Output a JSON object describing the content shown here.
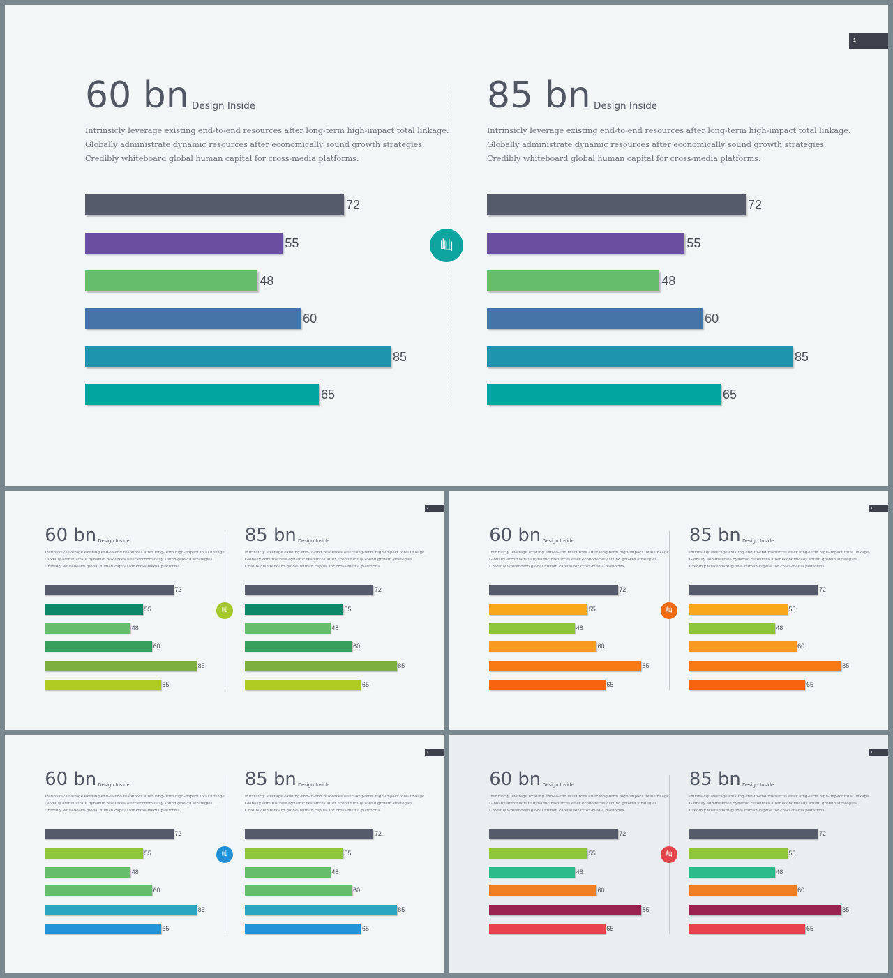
{
  "slides": [
    {
      "page": "1",
      "bg": "#f3f6f6",
      "accent": "#0ea5a1",
      "icon": "mountain-icon",
      "badge": "屾",
      "colors": [
        "#555b6b",
        "#6a4ea0",
        "#64be6c",
        "#4474a8",
        "#1e94ae",
        "#02a59f"
      ]
    },
    {
      "page": "2",
      "bg": "#f3f6f6",
      "accent": "#a5c82a",
      "icon": "mountain-icon",
      "badge": "屾",
      "colors": [
        "#555b6b",
        "#0d8868",
        "#64be6c",
        "#36a05c",
        "#7cae40",
        "#b0cc22"
      ]
    },
    {
      "page": "3",
      "bg": "#f3f6f6",
      "accent": "#f26a12",
      "icon": "mountain-icon",
      "badge": "屾",
      "colors": [
        "#555b6b",
        "#f8a81a",
        "#8ec63b",
        "#f89922",
        "#f87a14",
        "#f8640e"
      ]
    },
    {
      "page": "4",
      "bg": "#f3f6f6",
      "accent": "#1e90d8",
      "icon": "mountain-icon",
      "badge": "屾",
      "colors": [
        "#555b6b",
        "#8ec63b",
        "#64be6c",
        "#64be6c",
        "#2aa6c2",
        "#2294d8"
      ]
    },
    {
      "page": "5",
      "bg": "#ebeef0",
      "accent": "#e8424c",
      "icon": "mountain-icon",
      "badge": "屾",
      "colors": [
        "#555b6b",
        "#8ec63b",
        "#2cbc8c",
        "#f07f24",
        "#9a2250",
        "#e8424c"
      ]
    }
  ],
  "columns": [
    {
      "big": "60 bn",
      "sub": "Design Inside",
      "lines": [
        "Intrinsicly leverage existing end-to-end resources after long-term high-impact total linkage.",
        "Globally administrate dynamic resources after economically sound growth strategies.",
        "Credibly whiteboard global human capital for cross-media platforms."
      ]
    },
    {
      "big": "85 bn",
      "sub": "Design Inside",
      "lines": [
        "Intrinsicly leverage existing end-to-end resources after long-term high-impact total linkage.",
        "Globally administrate dynamic resources after economically sound growth strategies.",
        "Credibly whiteboard global human capital for cross-media platforms."
      ]
    }
  ],
  "chart_data": {
    "type": "bar",
    "orientation": "horizontal",
    "values": [
      72,
      55,
      48,
      60,
      85,
      65
    ],
    "value_labels": [
      "72",
      "55",
      "48",
      "60",
      "85",
      "65"
    ]
  }
}
